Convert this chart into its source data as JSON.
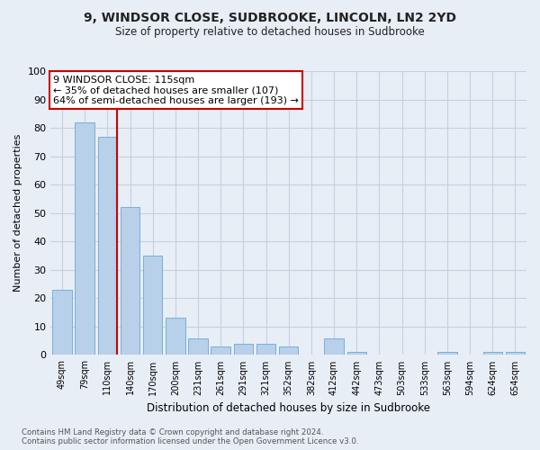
{
  "title": "9, WINDSOR CLOSE, SUDBROOKE, LINCOLN, LN2 2YD",
  "subtitle": "Size of property relative to detached houses in Sudbrooke",
  "xlabel": "Distribution of detached houses by size in Sudbrooke",
  "ylabel": "Number of detached properties",
  "categories": [
    "49sqm",
    "79sqm",
    "110sqm",
    "140sqm",
    "170sqm",
    "200sqm",
    "231sqm",
    "261sqm",
    "291sqm",
    "321sqm",
    "352sqm",
    "382sqm",
    "412sqm",
    "442sqm",
    "473sqm",
    "503sqm",
    "533sqm",
    "563sqm",
    "594sqm",
    "624sqm",
    "654sqm"
  ],
  "values": [
    23,
    82,
    77,
    52,
    35,
    13,
    6,
    3,
    4,
    4,
    3,
    0,
    6,
    1,
    0,
    0,
    0,
    1,
    0,
    1,
    1
  ],
  "bar_color": "#b8d0ea",
  "bar_edgecolor": "#7aafd4",
  "background_color": "#e8eef6",
  "grid_color": "#c5d0e0",
  "vline_color": "#cc0000",
  "annotation_title": "9 WINDSOR CLOSE: 115sqm",
  "annotation_line1": "← 35% of detached houses are smaller (107)",
  "annotation_line2": "64% of semi-detached houses are larger (193) →",
  "annotation_box_edgecolor": "#cc0000",
  "ylim": [
    0,
    100
  ],
  "yticks": [
    0,
    10,
    20,
    30,
    40,
    50,
    60,
    70,
    80,
    90,
    100
  ],
  "footnote1": "Contains HM Land Registry data © Crown copyright and database right 2024.",
  "footnote2": "Contains public sector information licensed under the Open Government Licence v3.0."
}
